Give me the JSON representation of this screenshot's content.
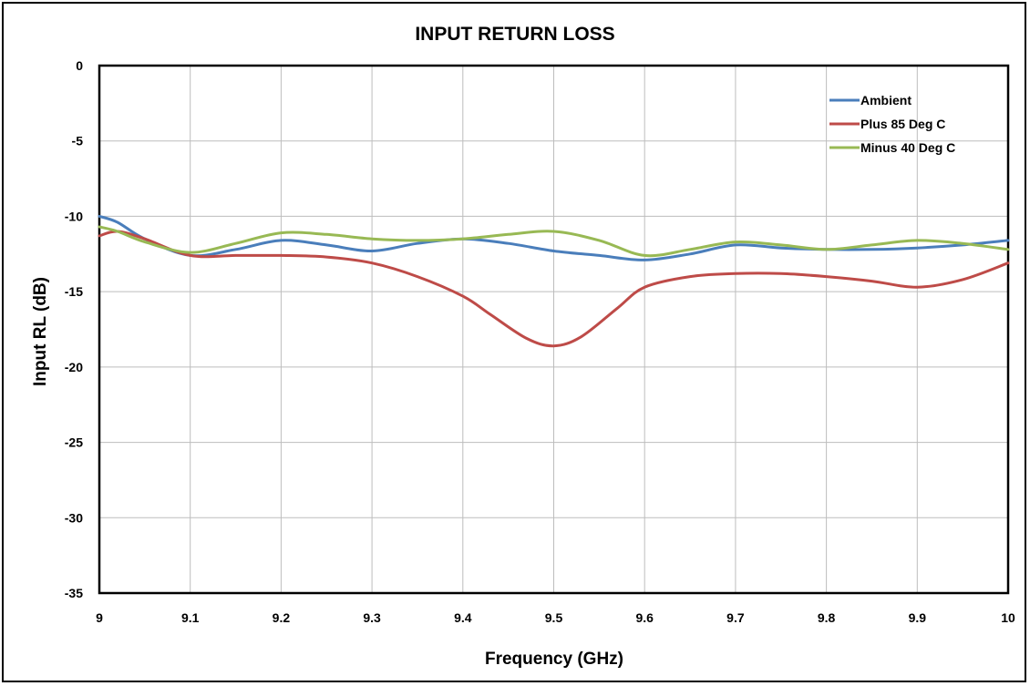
{
  "chart_data": {
    "type": "line",
    "title": "INPUT RETURN LOSS",
    "xlabel": "Frequency (GHz)",
    "ylabel": "Input RL (dB)",
    "xlim": [
      9,
      10
    ],
    "ylim": [
      -35,
      0
    ],
    "x_ticks": [
      "9",
      "9.1",
      "9.2",
      "9.3",
      "9.4",
      "9.5",
      "9.6",
      "9.7",
      "9.8",
      "9.9",
      "10"
    ],
    "y_ticks": [
      "0",
      "-5",
      "-10",
      "-15",
      "-20",
      "-25",
      "-30",
      "-35"
    ],
    "grid": true,
    "legend_position": "top-right",
    "series": [
      {
        "name": "Ambient",
        "color": "#4a7ebb",
        "x": [
          9.0,
          9.02,
          9.05,
          9.1,
          9.15,
          9.2,
          9.25,
          9.3,
          9.35,
          9.4,
          9.45,
          9.5,
          9.55,
          9.6,
          9.65,
          9.7,
          9.75,
          9.8,
          9.85,
          9.9,
          9.95,
          10.0
        ],
        "y": [
          -10.0,
          -10.4,
          -11.5,
          -12.6,
          -12.2,
          -11.6,
          -11.9,
          -12.3,
          -11.8,
          -11.5,
          -11.8,
          -12.3,
          -12.6,
          -12.9,
          -12.5,
          -11.9,
          -12.1,
          -12.2,
          -12.2,
          -12.1,
          -11.9,
          -11.6
        ]
      },
      {
        "name": "Plus 85 Deg C",
        "color": "#be4b48",
        "x": [
          9.0,
          9.02,
          9.05,
          9.1,
          9.15,
          9.2,
          9.25,
          9.3,
          9.35,
          9.4,
          9.43,
          9.47,
          9.5,
          9.53,
          9.57,
          9.6,
          9.65,
          9.7,
          9.75,
          9.8,
          9.85,
          9.9,
          9.95,
          10.0
        ],
        "y": [
          -11.3,
          -11.0,
          -11.5,
          -12.6,
          -12.6,
          -12.6,
          -12.7,
          -13.1,
          -14.0,
          -15.3,
          -16.5,
          -18.1,
          -18.6,
          -18.0,
          -16.1,
          -14.7,
          -14.0,
          -13.8,
          -13.8,
          -14.0,
          -14.3,
          -14.7,
          -14.2,
          -13.1
        ]
      },
      {
        "name": "Minus 40 Deg C",
        "color": "#98b954",
        "x": [
          9.0,
          9.02,
          9.05,
          9.1,
          9.15,
          9.2,
          9.25,
          9.3,
          9.35,
          9.4,
          9.45,
          9.5,
          9.55,
          9.6,
          9.65,
          9.7,
          9.75,
          9.8,
          9.85,
          9.9,
          9.95,
          10.0
        ],
        "y": [
          -10.7,
          -11.0,
          -11.7,
          -12.4,
          -11.8,
          -11.1,
          -11.2,
          -11.5,
          -11.6,
          -11.5,
          -11.2,
          -11.0,
          -11.6,
          -12.6,
          -12.2,
          -11.7,
          -11.9,
          -12.2,
          -11.9,
          -11.6,
          -11.8,
          -12.2
        ]
      }
    ]
  }
}
